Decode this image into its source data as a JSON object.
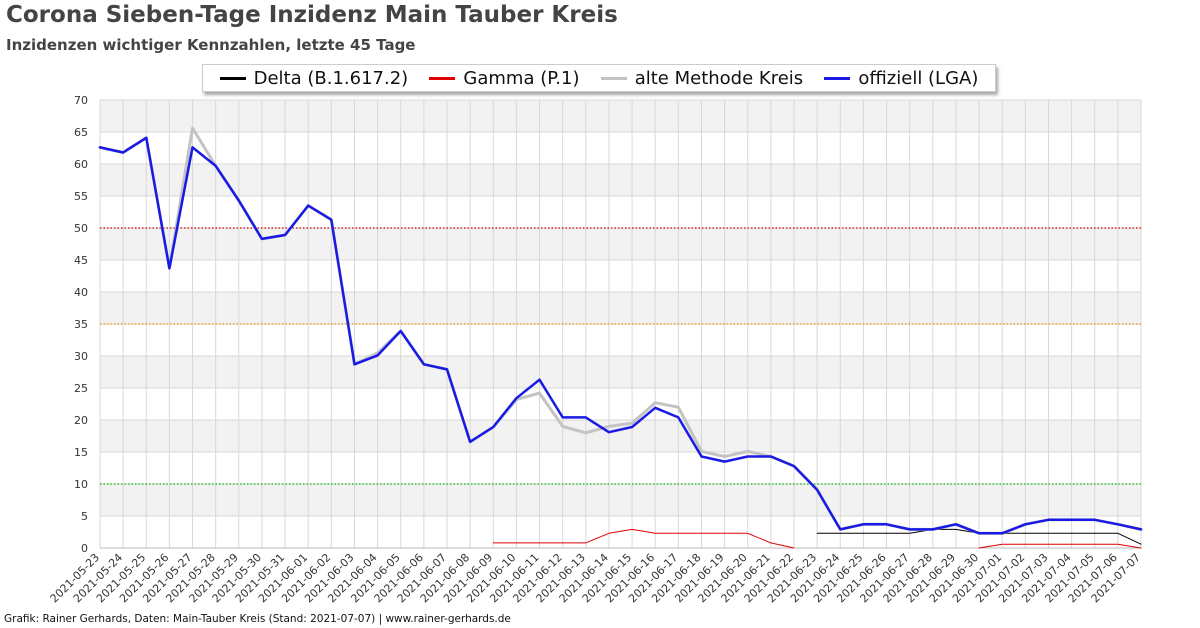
{
  "header": {
    "title": "Corona Sieben-Tage Inzidenz Main Tauber Kreis",
    "subtitle": "Inzidenzen wichtiger Kennzahlen, letzte 45 Tage"
  },
  "footer": {
    "credit": "Grafik: Rainer Gerhards, Daten: Main-Tauber Kreis (Stand: 2021-07-07) | www.rainer-gerhards.de"
  },
  "chart_data": {
    "type": "line",
    "title": "Corona Sieben-Tage Inzidenz Main Tauber Kreis",
    "subtitle": "Inzidenzen wichtiger Kennzahlen, letzte 45 Tage",
    "xlabel": "",
    "ylabel": "",
    "ylim": [
      0,
      70
    ],
    "yticks": [
      0,
      5,
      10,
      15,
      20,
      25,
      30,
      35,
      40,
      45,
      50,
      55,
      60,
      65,
      70
    ],
    "grid": true,
    "legend_position": "top-center",
    "categories": [
      "2021-05-23",
      "2021-05-24",
      "2021-05-25",
      "2021-05-26",
      "2021-05-27",
      "2021-05-28",
      "2021-05-29",
      "2021-05-30",
      "2021-05-31",
      "2021-06-01",
      "2021-06-02",
      "2021-06-03",
      "2021-06-04",
      "2021-06-05",
      "2021-06-06",
      "2021-06-07",
      "2021-06-08",
      "2021-06-09",
      "2021-06-10",
      "2021-06-11",
      "2021-06-12",
      "2021-06-13",
      "2021-06-14",
      "2021-06-15",
      "2021-06-16",
      "2021-06-17",
      "2021-06-18",
      "2021-06-19",
      "2021-06-20",
      "2021-06-21",
      "2021-06-22",
      "2021-06-23",
      "2021-06-24",
      "2021-06-25",
      "2021-06-26",
      "2021-06-27",
      "2021-06-28",
      "2021-06-29",
      "2021-06-30",
      "2021-07-01",
      "2021-07-02",
      "2021-07-03",
      "2021-07-04",
      "2021-07-05",
      "2021-07-06",
      "2021-07-07"
    ],
    "threshold_lines": [
      {
        "value": 50,
        "color": "#d40000"
      },
      {
        "value": 35,
        "color": "#e69500"
      },
      {
        "value": 10,
        "color": "#00bb00"
      }
    ],
    "series": [
      {
        "name": "Delta (B.1.617.2)",
        "color": "#000000",
        "width": 1,
        "values": [
          null,
          null,
          null,
          null,
          null,
          null,
          null,
          null,
          null,
          null,
          null,
          null,
          null,
          null,
          null,
          null,
          null,
          null,
          null,
          null,
          null,
          null,
          null,
          null,
          null,
          null,
          null,
          null,
          null,
          null,
          null,
          2.3,
          2.3,
          2.3,
          2.3,
          2.3,
          2.9,
          2.9,
          2.3,
          2.3,
          2.3,
          2.3,
          2.3,
          2.3,
          2.3,
          0.6
        ]
      },
      {
        "name": "Gamma (P.1)",
        "color": "#e00000",
        "width": 1,
        "values": [
          null,
          null,
          null,
          null,
          null,
          null,
          null,
          null,
          null,
          null,
          null,
          null,
          null,
          null,
          null,
          null,
          null,
          0.8,
          0.8,
          0.8,
          0.8,
          0.8,
          2.3,
          2.9,
          2.3,
          2.3,
          2.3,
          2.3,
          2.3,
          0.8,
          0.0,
          null,
          null,
          null,
          null,
          null,
          null,
          null,
          0.0,
          0.6,
          0.6,
          0.6,
          0.6,
          0.6,
          0.6,
          0.0
        ]
      },
      {
        "name": "alte Methode Kreis",
        "color": "#c3c3c3",
        "width": 3,
        "values": [
          62.6,
          61.8,
          64.1,
          43.7,
          65.6,
          59.7,
          54.3,
          48.3,
          48.9,
          53.5,
          51.3,
          28.7,
          30.5,
          33.9,
          28.7,
          27.9,
          16.6,
          18.9,
          23.2,
          24.2,
          19.0,
          18.0,
          19.0,
          19.5,
          22.7,
          22.0,
          15.1,
          14.3,
          15.1,
          14.3,
          12.8,
          9.1,
          2.9,
          3.7,
          3.7,
          2.9,
          2.9,
          3.7,
          2.3,
          2.3,
          3.7,
          4.4,
          4.4,
          4.4,
          3.7,
          2.9
        ]
      },
      {
        "name": "offiziell (LGA)",
        "color": "#1a1ae6",
        "width": 2.5,
        "values": [
          62.6,
          61.8,
          64.1,
          43.7,
          62.6,
          59.7,
          54.3,
          48.3,
          48.9,
          53.5,
          51.3,
          28.7,
          30.1,
          33.9,
          28.7,
          27.9,
          16.6,
          18.9,
          23.4,
          26.3,
          20.4,
          20.4,
          18.1,
          18.9,
          21.9,
          20.4,
          14.3,
          13.5,
          14.3,
          14.3,
          12.8,
          9.1,
          2.9,
          3.7,
          3.7,
          2.9,
          2.9,
          3.7,
          2.3,
          2.3,
          3.7,
          4.4,
          4.4,
          4.4,
          3.7,
          2.9
        ]
      }
    ]
  }
}
